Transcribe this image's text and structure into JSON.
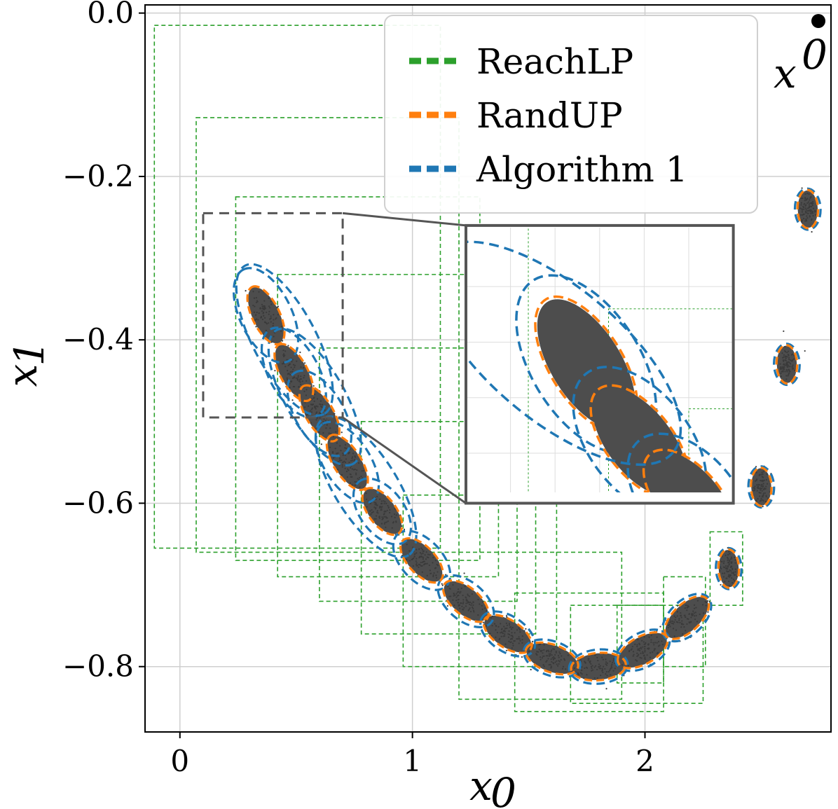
{
  "chart_data": {
    "type": "scatter",
    "title": "",
    "xlabel": "x",
    "xlabel_sub": "0",
    "ylabel": "x",
    "ylabel_sub": "1",
    "xlim": [
      -0.15,
      2.8
    ],
    "ylim": [
      -0.88,
      0.01
    ],
    "xticks": [
      0,
      1,
      2
    ],
    "xtick_labels": [
      "0",
      "1",
      "2"
    ],
    "yticks": [
      0.0,
      -0.2,
      -0.4,
      -0.6,
      -0.8
    ],
    "ytick_labels": [
      "0.0",
      "−0.2",
      "−0.4",
      "−0.6",
      "−0.8"
    ],
    "grid": true,
    "legend_position": "top-right",
    "colors": {
      "reachlp": "#2ca02c",
      "randup": "#ff7f0e",
      "algorithm1": "#1f77b4",
      "samples": "#4d4d4d",
      "zoom_box": "#555555"
    },
    "series": [
      {
        "name": "ReachLP",
        "color": "#2ca02c",
        "style": "dashed"
      },
      {
        "name": "RandUP",
        "color": "#ff7f0e",
        "style": "dashed"
      },
      {
        "name": "Algorithm 1",
        "color": "#1f77b4",
        "style": "dashed"
      }
    ],
    "initial_point": {
      "x": 2.75,
      "y": 0.0,
      "label": "x",
      "label_sup": "0"
    },
    "sample_clusters": [
      {
        "x": 2.7,
        "y": -0.24
      },
      {
        "x": 2.61,
        "y": -0.43
      },
      {
        "x": 2.5,
        "y": -0.58
      },
      {
        "x": 2.36,
        "y": -0.68
      },
      {
        "x": 2.18,
        "y": -0.74
      },
      {
        "x": 1.99,
        "y": -0.78
      },
      {
        "x": 1.8,
        "y": -0.8
      },
      {
        "x": 1.6,
        "y": -0.79
      },
      {
        "x": 1.41,
        "y": -0.76
      },
      {
        "x": 1.23,
        "y": -0.72
      },
      {
        "x": 1.04,
        "y": -0.67
      },
      {
        "x": 0.87,
        "y": -0.61
      },
      {
        "x": 0.72,
        "y": -0.55
      },
      {
        "x": 0.6,
        "y": -0.49
      },
      {
        "x": 0.49,
        "y": -0.44
      },
      {
        "x": 0.37,
        "y": -0.37
      }
    ],
    "reachlp_boxes": [
      {
        "x0": -0.11,
        "x1": 1.12,
        "y0": -0.655,
        "y1": -0.015
      },
      {
        "x0": 0.07,
        "x1": 1.2,
        "y0": -0.66,
        "y1": -0.128
      },
      {
        "x0": 0.24,
        "x1": 1.29,
        "y0": -0.67,
        "y1": -0.225
      },
      {
        "x0": 0.42,
        "x1": 1.37,
        "y0": -0.69,
        "y1": -0.32
      },
      {
        "x0": 0.6,
        "x1": 1.45,
        "y0": -0.72,
        "y1": -0.41
      },
      {
        "x0": 0.78,
        "x1": 1.53,
        "y0": -0.76,
        "y1": -0.5
      },
      {
        "x0": 0.96,
        "x1": 1.62,
        "y0": -0.8,
        "y1": -0.59
      },
      {
        "x0": 1.2,
        "x1": 1.9,
        "y0": -0.84,
        "y1": -0.66
      },
      {
        "x0": 1.44,
        "x1": 2.08,
        "y0": -0.855,
        "y1": -0.71
      },
      {
        "x0": 1.68,
        "x1": 2.25,
        "y0": -0.845,
        "y1": -0.725
      },
      {
        "x0": 1.88,
        "x1": 2.08,
        "y0": -0.82,
        "y1": -0.725
      },
      {
        "x0": 2.08,
        "x1": 2.26,
        "y0": -0.8,
        "y1": -0.69
      },
      {
        "x0": 2.28,
        "x1": 2.42,
        "y0": -0.725,
        "y1": -0.635
      }
    ],
    "zoom_source": {
      "x0": 0.1,
      "x1": 0.7,
      "y0": -0.495,
      "y1": -0.245
    },
    "zoom_inset": {
      "x0": 1.23,
      "x1": 2.38,
      "y0": -0.6,
      "y1": -0.26
    }
  }
}
